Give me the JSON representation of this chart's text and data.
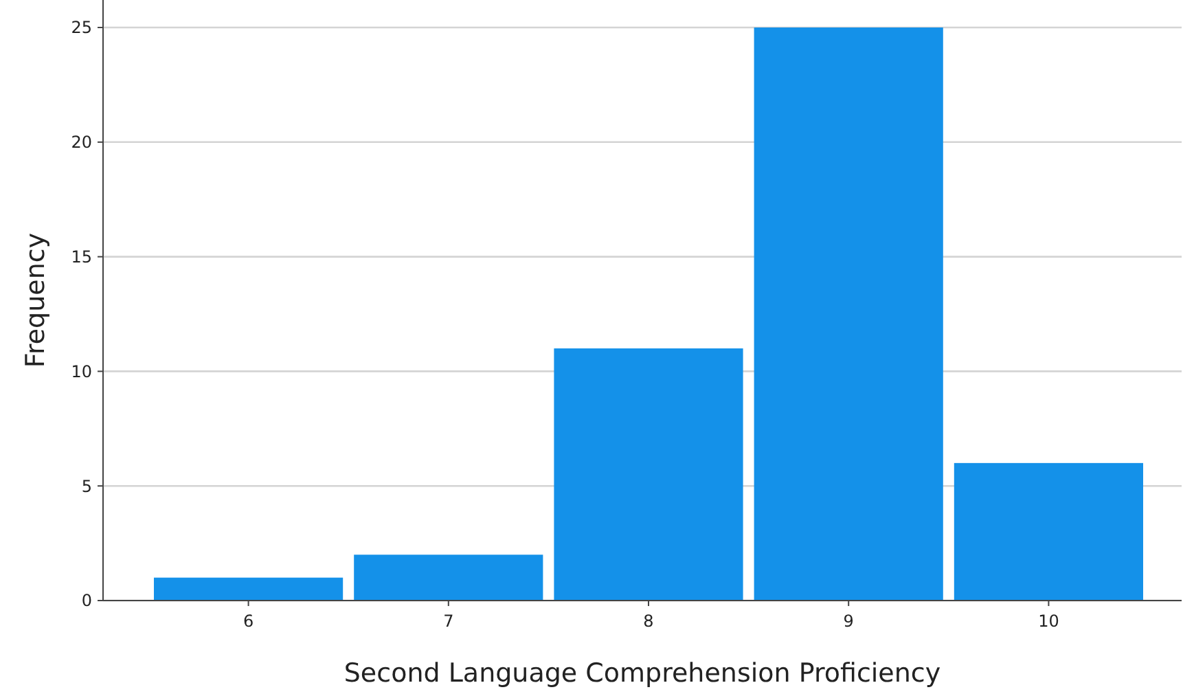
{
  "chart_data": {
    "type": "bar",
    "xlabel": "Second Language Comprehension Proficiency",
    "ylabel": "Frequency",
    "categories": [
      "6",
      "7",
      "8",
      "9",
      "10"
    ],
    "values": [
      1,
      2,
      11,
      25,
      6
    ],
    "color": "#1491e9",
    "ylim": [
      0,
      26.2
    ],
    "yticks": [
      0,
      5,
      10,
      15,
      20,
      25
    ],
    "grid": "y"
  }
}
